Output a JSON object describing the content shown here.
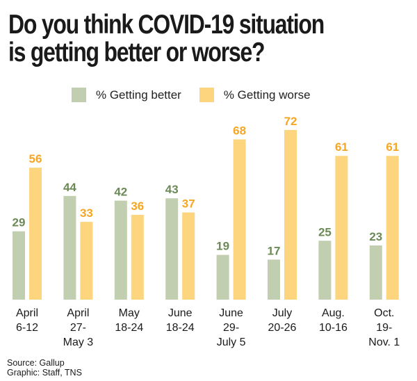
{
  "title_lines": [
    "Do you think COVID-19 situation",
    "is getting better or worse?"
  ],
  "legend": [
    {
      "label": "% Getting better",
      "color": "#c2ceb0"
    },
    {
      "label": "% Getting worse",
      "color": "#fdd57e"
    }
  ],
  "label_colors": {
    "better": "#6b8a56",
    "worse": "#f5a623"
  },
  "source": "Source: Gallup",
  "credit": "Graphic: Staff, TNS",
  "chart_data": {
    "type": "bar",
    "title": "Do you think COVID-19 situation is getting better or worse?",
    "xlabel": "",
    "ylabel": "",
    "ylim": [
      0,
      72
    ],
    "grid": false,
    "legend_position": "top",
    "categories": [
      [
        "April",
        "6-12"
      ],
      [
        "April",
        "27-",
        "May 3"
      ],
      [
        "May",
        "18-24"
      ],
      [
        "June",
        "18-24"
      ],
      [
        "June",
        "29-",
        "July 5"
      ],
      [
        "July",
        "20-26"
      ],
      [
        "Aug.",
        "10-16"
      ],
      [
        "Oct.",
        "19-",
        "Nov. 1"
      ]
    ],
    "series": [
      {
        "name": "% Getting better",
        "values": [
          29,
          44,
          42,
          43,
          19,
          17,
          25,
          23
        ]
      },
      {
        "name": "% Getting worse",
        "values": [
          56,
          33,
          36,
          37,
          68,
          72,
          61,
          61
        ]
      }
    ]
  }
}
